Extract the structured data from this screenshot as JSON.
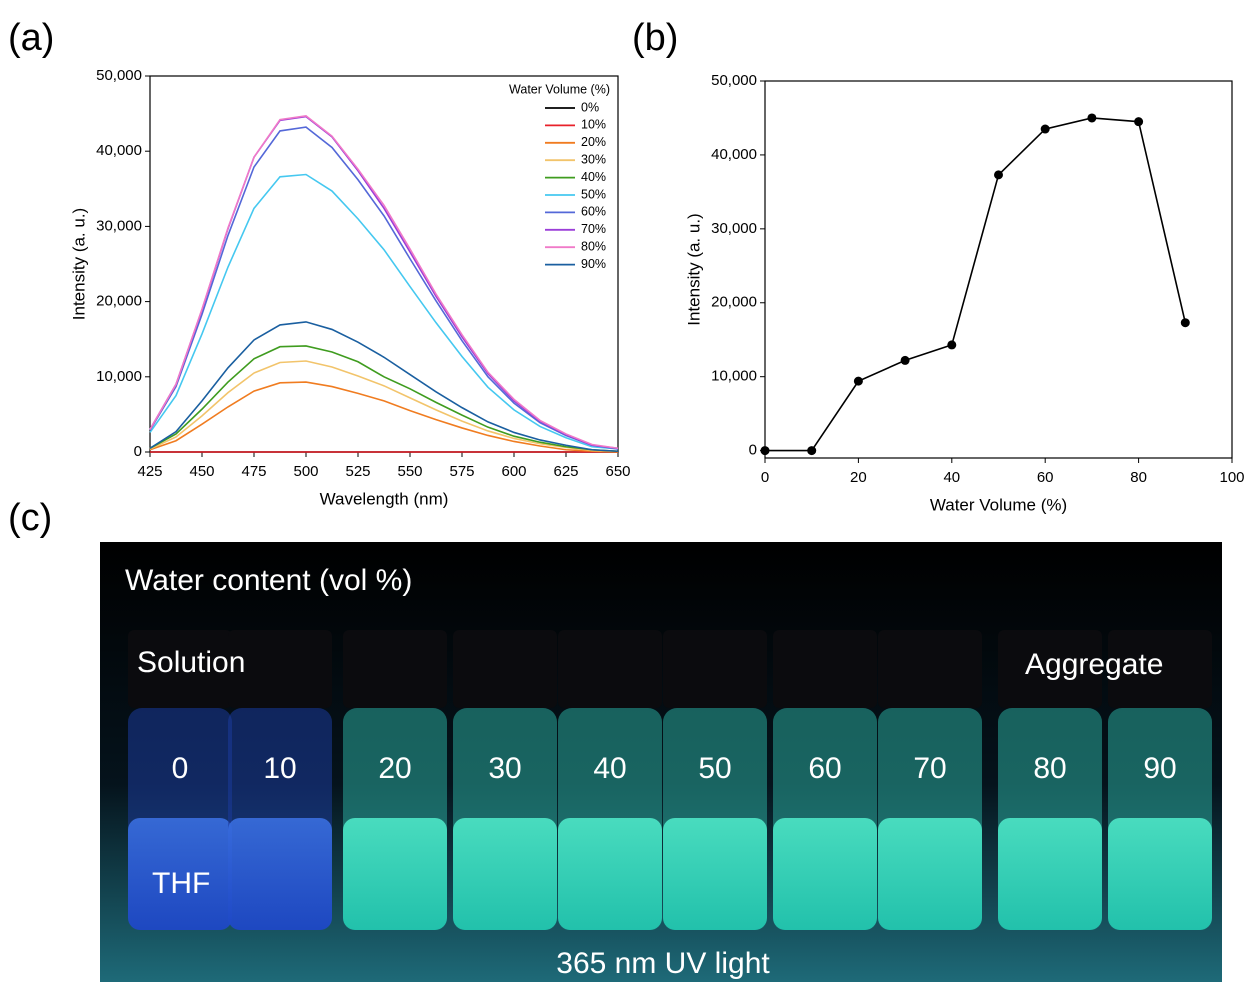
{
  "chart_data": [
    {
      "type": "line",
      "label": "(a)",
      "xlabel": "Wavelength (nm)",
      "ylabel": "Intensity (a. u.)",
      "legend": "upper right",
      "legend_title": "Water Volume (%)",
      "xlim": [
        425,
        650
      ],
      "xticks": [
        425,
        450,
        475,
        500,
        525,
        550,
        575,
        600,
        625,
        650
      ],
      "ylim": [
        0,
        50000
      ],
      "yticks": [
        0,
        {
          "value": 10000,
          "label": "10,000"
        },
        {
          "value": 20000,
          "label": "20,000"
        },
        {
          "value": 30000,
          "label": "30,000"
        },
        {
          "value": 40000,
          "label": "40,000"
        },
        {
          "value": 50000,
          "label": "50,000"
        }
      ],
      "x": [
        425,
        437.5,
        450,
        462.5,
        475,
        487.5,
        500,
        512.5,
        525,
        537.5,
        550,
        562.5,
        575,
        587.5,
        600,
        612.5,
        625,
        637.5,
        650
      ],
      "series": [
        {
          "name": "0%",
          "color": "#000000",
          "values": [
            0,
            0,
            0,
            0,
            0,
            0,
            0,
            0,
            0,
            0,
            0,
            0,
            0,
            0,
            0,
            0,
            0,
            0,
            0
          ]
        },
        {
          "name": "10%",
          "color": "#e8212a",
          "values": [
            0,
            0,
            0,
            0,
            0,
            0,
            0,
            0,
            0,
            0,
            0,
            0,
            0,
            0,
            0,
            0,
            0,
            0,
            0
          ]
        },
        {
          "name": "20%",
          "color": "#f07c20",
          "values": [
            300,
            1500,
            3700,
            6000,
            8100,
            9200,
            9300,
            8700,
            7800,
            6800,
            5500,
            4300,
            3200,
            2200,
            1400,
            800,
            300,
            100,
            0
          ]
        },
        {
          "name": "30%",
          "color": "#f2c46b",
          "values": [
            400,
            2000,
            4800,
            7900,
            10500,
            11900,
            12100,
            11300,
            10100,
            8800,
            7200,
            5600,
            4100,
            2800,
            1800,
            1100,
            600,
            200,
            100
          ]
        },
        {
          "name": "40%",
          "color": "#3f9c1f",
          "values": [
            500,
            2400,
            5700,
            9300,
            12400,
            14000,
            14100,
            13300,
            12000,
            10000,
            8400,
            6600,
            4900,
            3300,
            2100,
            1300,
            700,
            300,
            100
          ]
        },
        {
          "name": "50%",
          "color": "#45c8f0",
          "values": [
            2600,
            7500,
            15700,
            24600,
            32400,
            36600,
            36900,
            34700,
            31000,
            26900,
            22000,
            17200,
            12700,
            8600,
            5600,
            3400,
            1900,
            700,
            400
          ]
        },
        {
          "name": "60%",
          "color": "#5468d8",
          "values": [
            2900,
            8700,
            18300,
            28800,
            37900,
            42700,
            43200,
            40500,
            36200,
            31400,
            25700,
            20100,
            14800,
            10000,
            6500,
            3900,
            2200,
            900,
            400
          ]
        },
        {
          "name": "70%",
          "color": "#9b3ed8",
          "values": [
            3000,
            9000,
            18900,
            29700,
            39200,
            44100,
            44600,
            41900,
            37400,
            32400,
            26600,
            20700,
            15300,
            10400,
            6800,
            4100,
            2300,
            900,
            500
          ]
        },
        {
          "name": "80%",
          "color": "#f07ac8",
          "values": [
            3000,
            9000,
            19000,
            29800,
            39200,
            44200,
            44700,
            42000,
            37600,
            32800,
            27000,
            21000,
            15600,
            10600,
            7000,
            4200,
            2400,
            1000,
            500
          ]
        },
        {
          "name": "90%",
          "color": "#1a5fa0",
          "values": [
            500,
            2700,
            6800,
            11200,
            14900,
            16900,
            17300,
            16300,
            14600,
            12600,
            10300,
            8000,
            5900,
            4000,
            2600,
            1600,
            900,
            300,
            100
          ]
        }
      ]
    },
    {
      "type": "line",
      "label": "(b)",
      "xlabel": "Water Volume (%)",
      "ylabel": "Intensity (a. u.)",
      "markers": true,
      "xlim": [
        0,
        100
      ],
      "xticks": [
        0,
        20,
        40,
        60,
        80,
        100
      ],
      "ylim": [
        -1000,
        50000
      ],
      "yticks": [
        0,
        {
          "value": 10000,
          "label": "10,000"
        },
        {
          "value": 20000,
          "label": "20,000"
        },
        {
          "value": 30000,
          "label": "30,000"
        },
        {
          "value": 40000,
          "label": "40,000"
        },
        {
          "value": 50000,
          "label": "50,000"
        }
      ],
      "x": [
        0,
        10,
        20,
        30,
        40,
        50,
        60,
        70,
        80,
        90
      ],
      "series": [
        {
          "color": "#000000",
          "values": [
            0,
            0,
            9400,
            12200,
            14300,
            37300,
            43500,
            45000,
            44500,
            17300
          ]
        }
      ]
    }
  ],
  "photo": {
    "label": "(c)",
    "title": "Water content (vol %)",
    "left_note": "Solution",
    "right_note": "Aggregate",
    "solvent": "THF",
    "light": "365 nm UV light",
    "vials": [
      "0",
      "10",
      "20",
      "30",
      "40",
      "50",
      "60",
      "70",
      "80",
      "90"
    ]
  }
}
